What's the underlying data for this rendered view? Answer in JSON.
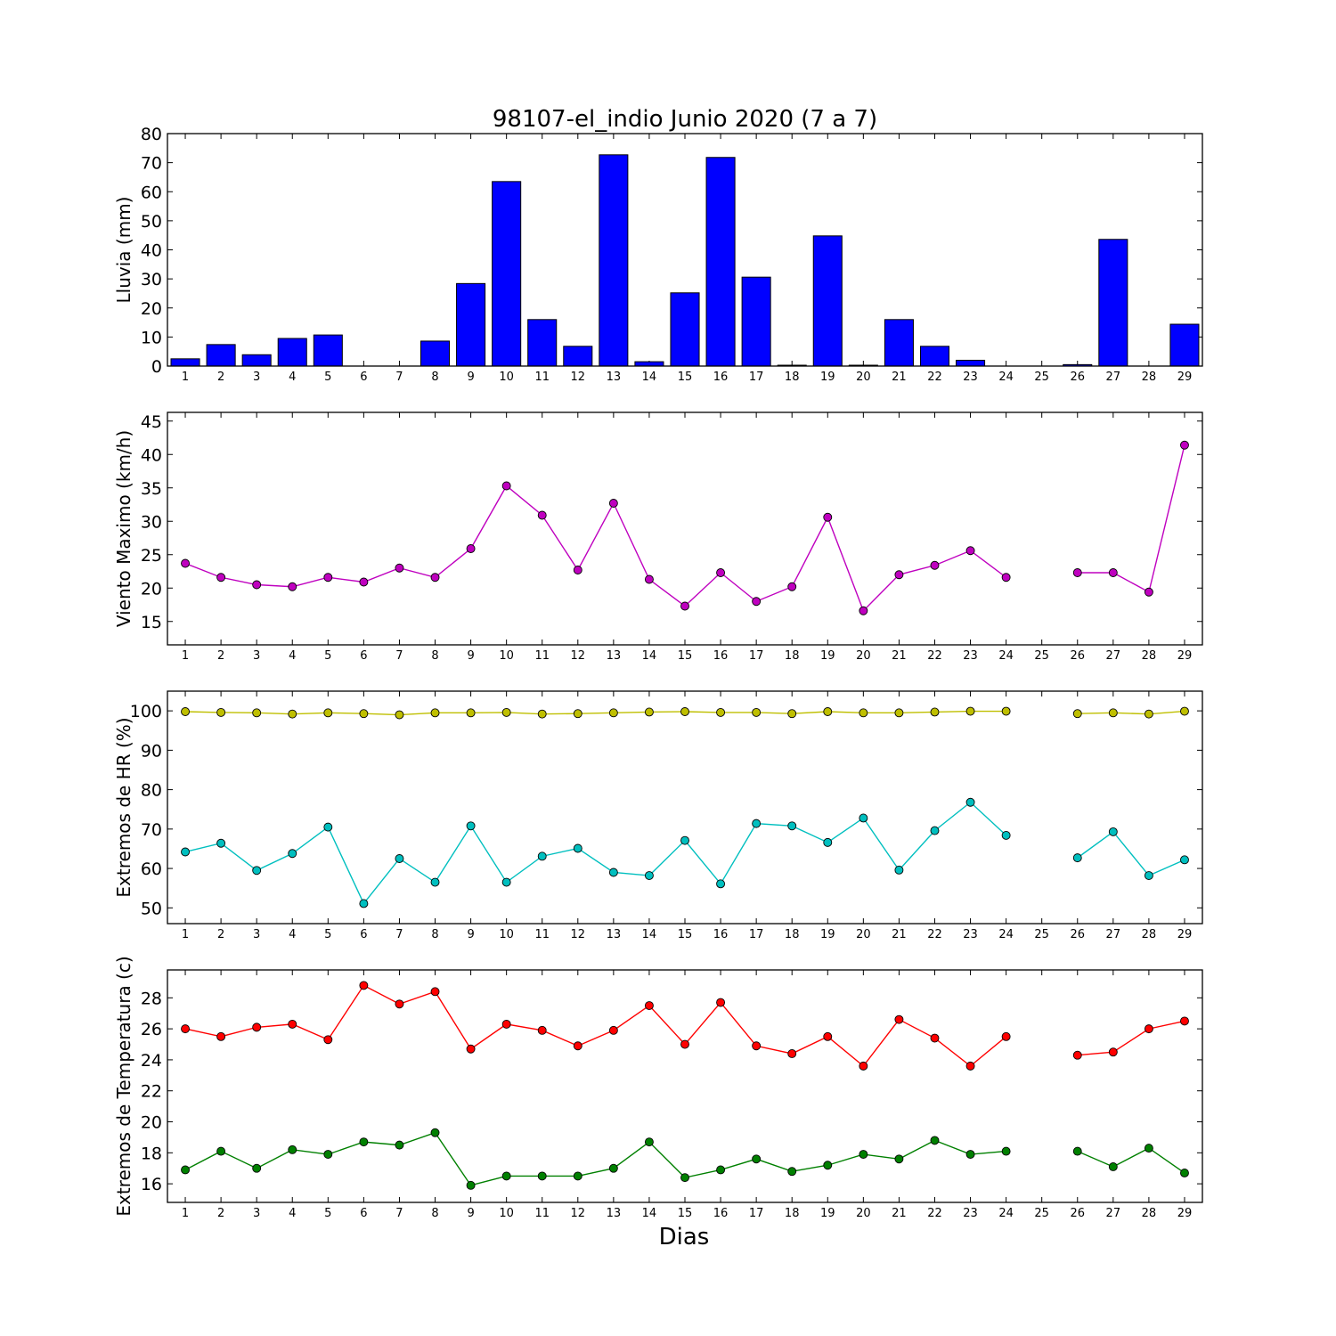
{
  "figure": {
    "title": "98107-el_indio Junio 2020  (7 a 7)",
    "xlabel": "Dias"
  },
  "chart_data": [
    {
      "type": "bar",
      "ylabel": "Lluvia (mm)",
      "categories": [
        1,
        2,
        3,
        4,
        5,
        6,
        7,
        8,
        9,
        10,
        11,
        12,
        13,
        14,
        15,
        16,
        17,
        18,
        19,
        20,
        21,
        22,
        23,
        24,
        25,
        26,
        27,
        28,
        29
      ],
      "x_ticks": [
        1,
        2,
        3,
        4,
        5,
        6,
        7,
        8,
        9,
        10,
        11,
        12,
        13,
        14,
        15,
        16,
        17,
        18,
        19,
        20,
        21,
        22,
        23,
        24,
        25,
        26,
        27,
        28,
        29
      ],
      "ylim": [
        0,
        80
      ],
      "y_ticks": [
        0,
        10,
        20,
        30,
        40,
        50,
        60,
        70,
        80
      ],
      "series": [
        {
          "color": "#0000ff",
          "values": [
            2.5,
            7.4,
            3.9,
            9.5,
            10.7,
            0,
            0,
            8.6,
            28.4,
            63.5,
            16.0,
            6.8,
            72.7,
            1.5,
            25.2,
            71.8,
            30.6,
            0.3,
            44.8,
            0.3,
            16.0,
            6.8,
            2.0,
            0,
            0,
            0.5,
            43.6,
            0,
            14.4
          ]
        }
      ]
    },
    {
      "type": "line",
      "ylabel": "Viento Maximo (km/h)",
      "x": [
        1,
        2,
        3,
        4,
        5,
        6,
        7,
        8,
        9,
        10,
        11,
        12,
        13,
        14,
        15,
        16,
        17,
        18,
        19,
        20,
        21,
        22,
        23,
        24,
        25,
        26,
        27,
        28,
        29
      ],
      "x_ticks": [
        1,
        2,
        3,
        4,
        5,
        6,
        7,
        8,
        9,
        10,
        11,
        12,
        13,
        14,
        15,
        16,
        17,
        18,
        19,
        20,
        21,
        22,
        23,
        24,
        25,
        26,
        27,
        28,
        29
      ],
      "ylim": [
        11.5,
        46.3
      ],
      "y_ticks": [
        15,
        20,
        25,
        30,
        35,
        40,
        45
      ],
      "series": [
        {
          "color": "#bf00bf",
          "values": [
            23.7,
            21.6,
            20.5,
            20.2,
            21.6,
            20.9,
            23.0,
            21.6,
            25.9,
            35.3,
            30.9,
            22.7,
            32.7,
            21.3,
            17.3,
            22.3,
            18.0,
            20.2,
            30.6,
            16.6,
            22.0,
            23.4,
            25.6,
            21.6,
            null,
            22.3,
            22.3,
            19.4,
            41.4
          ]
        }
      ]
    },
    {
      "type": "line",
      "ylabel": "Extremos de HR (%)",
      "x": [
        1,
        2,
        3,
        4,
        5,
        6,
        7,
        8,
        9,
        10,
        11,
        12,
        13,
        14,
        15,
        16,
        17,
        18,
        19,
        20,
        21,
        22,
        23,
        24,
        25,
        26,
        27,
        28,
        29
      ],
      "x_ticks": [
        1,
        2,
        3,
        4,
        5,
        6,
        7,
        8,
        9,
        10,
        11,
        12,
        13,
        14,
        15,
        16,
        17,
        18,
        19,
        20,
        21,
        22,
        23,
        24,
        25,
        26,
        27,
        28,
        29
      ],
      "ylim": [
        46,
        105
      ],
      "y_ticks": [
        50,
        60,
        70,
        80,
        90,
        100
      ],
      "series": [
        {
          "color": "#bfbf00",
          "values": [
            99.8,
            99.6,
            99.5,
            99.2,
            99.5,
            99.3,
            99.0,
            99.5,
            99.5,
            99.6,
            99.2,
            99.3,
            99.5,
            99.7,
            99.8,
            99.6,
            99.6,
            99.3,
            99.8,
            99.5,
            99.5,
            99.7,
            99.9,
            99.9,
            null,
            99.3,
            99.5,
            99.2,
            99.9
          ]
        },
        {
          "color": "#00bfbf",
          "values": [
            64.2,
            66.4,
            59.5,
            63.8,
            70.5,
            51.1,
            62.5,
            56.5,
            70.8,
            56.5,
            63.1,
            65.1,
            59.0,
            58.2,
            67.1,
            56.1,
            71.4,
            70.8,
            66.6,
            72.8,
            59.6,
            69.6,
            76.8,
            68.4,
            null,
            62.7,
            69.3,
            58.2,
            62.2
          ]
        }
      ]
    },
    {
      "type": "line",
      "ylabel": "Extremos de Temperatura (c)",
      "x": [
        1,
        2,
        3,
        4,
        5,
        6,
        7,
        8,
        9,
        10,
        11,
        12,
        13,
        14,
        15,
        16,
        17,
        18,
        19,
        20,
        21,
        22,
        23,
        24,
        25,
        26,
        27,
        28,
        29
      ],
      "x_ticks": [
        1,
        2,
        3,
        4,
        5,
        6,
        7,
        8,
        9,
        10,
        11,
        12,
        13,
        14,
        15,
        16,
        17,
        18,
        19,
        20,
        21,
        22,
        23,
        24,
        25,
        26,
        27,
        28,
        29
      ],
      "ylim": [
        14.8,
        29.8
      ],
      "y_ticks": [
        16,
        18,
        20,
        22,
        24,
        26,
        28
      ],
      "series": [
        {
          "color": "#ff0000",
          "values": [
            26.0,
            25.5,
            26.1,
            26.3,
            25.3,
            28.8,
            27.6,
            28.4,
            24.7,
            26.3,
            25.9,
            24.9,
            25.9,
            27.5,
            25.0,
            27.7,
            24.9,
            24.4,
            25.5,
            23.6,
            26.6,
            25.4,
            23.6,
            25.5,
            null,
            24.3,
            24.5,
            26.0,
            26.5
          ]
        },
        {
          "color": "#008000",
          "values": [
            16.9,
            18.1,
            17.0,
            18.2,
            17.9,
            18.7,
            18.5,
            19.3,
            15.9,
            16.5,
            16.5,
            16.5,
            17.0,
            18.7,
            16.4,
            16.9,
            17.6,
            16.8,
            17.2,
            17.9,
            17.6,
            18.8,
            17.9,
            18.1,
            null,
            18.1,
            17.1,
            18.3,
            16.7
          ]
        }
      ]
    }
  ]
}
